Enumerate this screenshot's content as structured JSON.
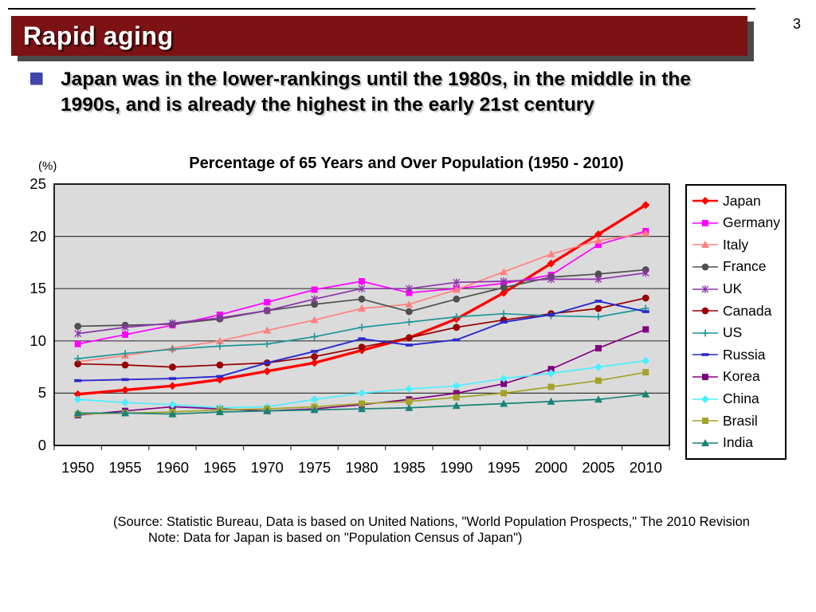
{
  "slide": {
    "page_number": "3",
    "title": "Rapid aging",
    "bullet": {
      "line1": "Japan was in the lower-rankings until the 1980s, in the middle in the",
      "line2": "1990s, and is already the highest in the early 21st century"
    }
  },
  "source_note": {
    "line1": "(Source: Statistic Bureau, Data is based on United Nations, \"World Population Prospects,\" The 2010 Revision",
    "line2": "Note: Data for Japan is based on \"Population Census of Japan\")"
  },
  "colors": {
    "header_bg": "#7D1215",
    "header_shadow": "#4a4a4a",
    "bullet_square": "#3F45AE",
    "plot_background": "#DBDBDB",
    "gridline": "#3a3a3a"
  },
  "chart_data": {
    "type": "line",
    "title": "Percentage of 65 Years and Over Population (1950 - 2010)",
    "y_unit_label": "(%)",
    "categories": [
      "1950",
      "1955",
      "1960",
      "1965",
      "1970",
      "1975",
      "1980",
      "1985",
      "1990",
      "1995",
      "2000",
      "2005",
      "2010"
    ],
    "y_ticks": [
      0,
      5,
      10,
      15,
      20,
      25
    ],
    "ylim": [
      0,
      25
    ],
    "grid": true,
    "legend_position": "right",
    "plot_bg": "#DBDBDB",
    "series": [
      {
        "name": "Japan",
        "color": "#FF0000",
        "marker": "diamond",
        "line_width": 3.4,
        "values": [
          4.9,
          5.3,
          5.7,
          6.3,
          7.1,
          7.9,
          9.1,
          10.3,
          12.1,
          14.6,
          17.4,
          20.2,
          23.0
        ]
      },
      {
        "name": "Germany",
        "color": "#FF00FF",
        "marker": "square",
        "line_width": 1.7,
        "values": [
          9.7,
          10.6,
          11.5,
          12.5,
          13.7,
          14.9,
          15.7,
          14.6,
          15.0,
          15.5,
          16.3,
          19.2,
          20.5
        ]
      },
      {
        "name": "Italy",
        "color": "#FF8080",
        "marker": "triangle",
        "line_width": 1.7,
        "values": [
          8.0,
          8.6,
          9.3,
          10.0,
          11.0,
          12.0,
          13.1,
          13.5,
          14.9,
          16.6,
          18.3,
          19.6,
          20.3
        ]
      },
      {
        "name": "France",
        "color": "#4F4F4F",
        "marker": "circle",
        "line_width": 1.7,
        "values": [
          11.4,
          11.5,
          11.6,
          12.1,
          12.9,
          13.5,
          14.0,
          12.8,
          14.0,
          15.1,
          16.1,
          16.4,
          16.8
        ]
      },
      {
        "name": "UK",
        "color": "#8B35A8",
        "marker": "asterisk",
        "line_width": 1.7,
        "values": [
          10.7,
          11.3,
          11.7,
          12.2,
          12.9,
          14.0,
          15.0,
          15.0,
          15.6,
          15.7,
          15.9,
          15.9,
          16.5
        ]
      },
      {
        "name": "Canada",
        "color": "#990000",
        "marker": "circle",
        "line_width": 1.7,
        "values": [
          7.8,
          7.7,
          7.5,
          7.7,
          7.9,
          8.5,
          9.4,
          10.3,
          11.3,
          12.0,
          12.6,
          13.1,
          14.1
        ]
      },
      {
        "name": "US",
        "color": "#1F9696",
        "marker": "plus",
        "line_width": 1.7,
        "values": [
          8.3,
          8.8,
          9.2,
          9.5,
          9.7,
          10.4,
          11.3,
          11.8,
          12.3,
          12.6,
          12.4,
          12.3,
          13.1
        ]
      },
      {
        "name": "Russia",
        "color": "#2929CC",
        "marker": "dash",
        "line_width": 1.9,
        "values": [
          6.2,
          6.3,
          6.4,
          6.6,
          7.9,
          9.0,
          10.2,
          9.6,
          10.1,
          11.8,
          12.5,
          13.8,
          12.8
        ]
      },
      {
        "name": "Korea",
        "color": "#800080",
        "marker": "square",
        "line_width": 1.7,
        "values": [
          2.9,
          3.3,
          3.7,
          3.5,
          3.3,
          3.5,
          3.9,
          4.4,
          5.0,
          5.9,
          7.3,
          9.3,
          11.1
        ]
      },
      {
        "name": "China",
        "color": "#4DEEFF",
        "marker": "diamond",
        "line_width": 1.7,
        "values": [
          4.4,
          4.1,
          3.9,
          3.6,
          3.7,
          4.4,
          5.0,
          5.4,
          5.7,
          6.4,
          6.9,
          7.5,
          8.1
        ]
      },
      {
        "name": "Brasil",
        "color": "#A3A329",
        "marker": "square",
        "line_width": 1.7,
        "values": [
          3.0,
          3.1,
          3.2,
          3.4,
          3.5,
          3.7,
          4.0,
          4.2,
          4.6,
          5.0,
          5.6,
          6.2,
          7.0
        ]
      },
      {
        "name": "India",
        "color": "#1A8276",
        "marker": "triangle",
        "line_width": 1.7,
        "values": [
          3.1,
          3.1,
          3.0,
          3.2,
          3.3,
          3.4,
          3.5,
          3.6,
          3.8,
          4.0,
          4.2,
          4.4,
          4.9
        ]
      }
    ]
  }
}
